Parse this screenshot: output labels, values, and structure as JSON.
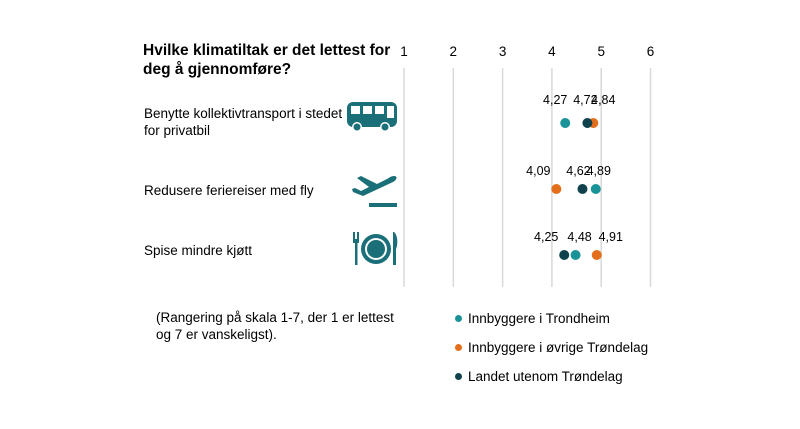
{
  "chart_data": {
    "type": "scatter",
    "title": "Hvilke klimatiltak er det lettest for deg å gjennomføre?",
    "x_ticks": [
      "1",
      "2",
      "3",
      "4",
      "5",
      "6"
    ],
    "xlim": [
      1,
      6
    ],
    "grid": true,
    "categories": [
      "Benytte kollektivtransport i stedet for privatbil",
      "Redusere feriereiser med fly",
      "Spise mindre kjøtt"
    ],
    "series": [
      {
        "name": "Innbyggere i Trondheim",
        "color": "#1a9398",
        "values": [
          4.27,
          4.89,
          4.48
        ]
      },
      {
        "name": "Innbyggere i øvrige Trøndelag",
        "color": "#e36f1c",
        "values": [
          4.84,
          4.09,
          4.91
        ]
      },
      {
        "name": "Landet utenom Trøndelag",
        "color": "#10424d",
        "values": [
          4.72,
          4.62,
          4.25
        ]
      }
    ],
    "data_labels": [
      [
        "4,27",
        "4,84",
        "4,72"
      ],
      [
        "4,89",
        "4,09",
        "4,62"
      ],
      [
        "4,48",
        "4,91",
        "4,25"
      ]
    ],
    "note": "(Rangering på skala 1-7, der 1 er lettest og 7 er vanskeligst).",
    "legend_placement": "bottom-right"
  },
  "icons": [
    "bus-icon",
    "airplane-icon",
    "plate-cutlery-icon"
  ],
  "icon_color": "#1a6f78"
}
